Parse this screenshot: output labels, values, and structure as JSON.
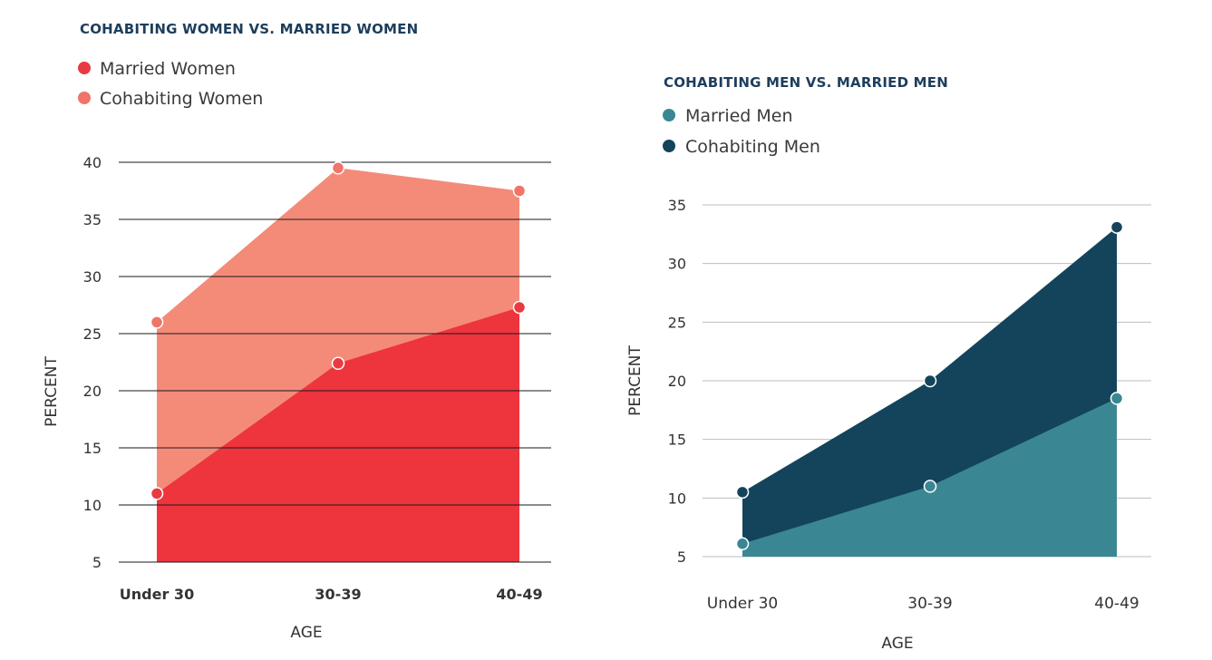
{
  "chart_data": [
    {
      "type": "area",
      "title": "COHABITING WOMEN VS. MARRIED WOMEN",
      "xlabel": "AGE",
      "ylabel": "PERCENT",
      "categories": [
        "Under 30",
        "30-39",
        "40-49"
      ],
      "yticks": [
        5,
        10,
        15,
        20,
        25,
        30,
        35,
        40
      ],
      "ylim": [
        5,
        40
      ],
      "legend_position": "top-left",
      "grid": true,
      "series": [
        {
          "name": "Married Women",
          "values": [
            11,
            22.4,
            27.3
          ],
          "color": "#ee343d",
          "marker_color": "#e83a42"
        },
        {
          "name": "Cohabiting Women",
          "values": [
            26,
            39.5,
            37.5
          ],
          "color": "#f48b78",
          "marker_color": "#f07467"
        }
      ]
    },
    {
      "type": "area",
      "title": "COHABITING MEN VS. MARRIED MEN",
      "xlabel": "AGE",
      "ylabel": "PERCENT",
      "categories": [
        "Under 30",
        "30-39",
        "40-49"
      ],
      "yticks": [
        5,
        10,
        15,
        20,
        25,
        30,
        35
      ],
      "ylim": [
        5,
        35
      ],
      "legend_position": "top-left",
      "grid": true,
      "series": [
        {
          "name": "Married Men",
          "values": [
            6.1,
            11,
            18.5
          ],
          "color": "#3a8793",
          "marker_color": "#3a8793"
        },
        {
          "name": "Cohabiting Men",
          "values": [
            10.5,
            20,
            33.1
          ],
          "color": "#13445c",
          "marker_color": "#13445c"
        }
      ]
    }
  ]
}
